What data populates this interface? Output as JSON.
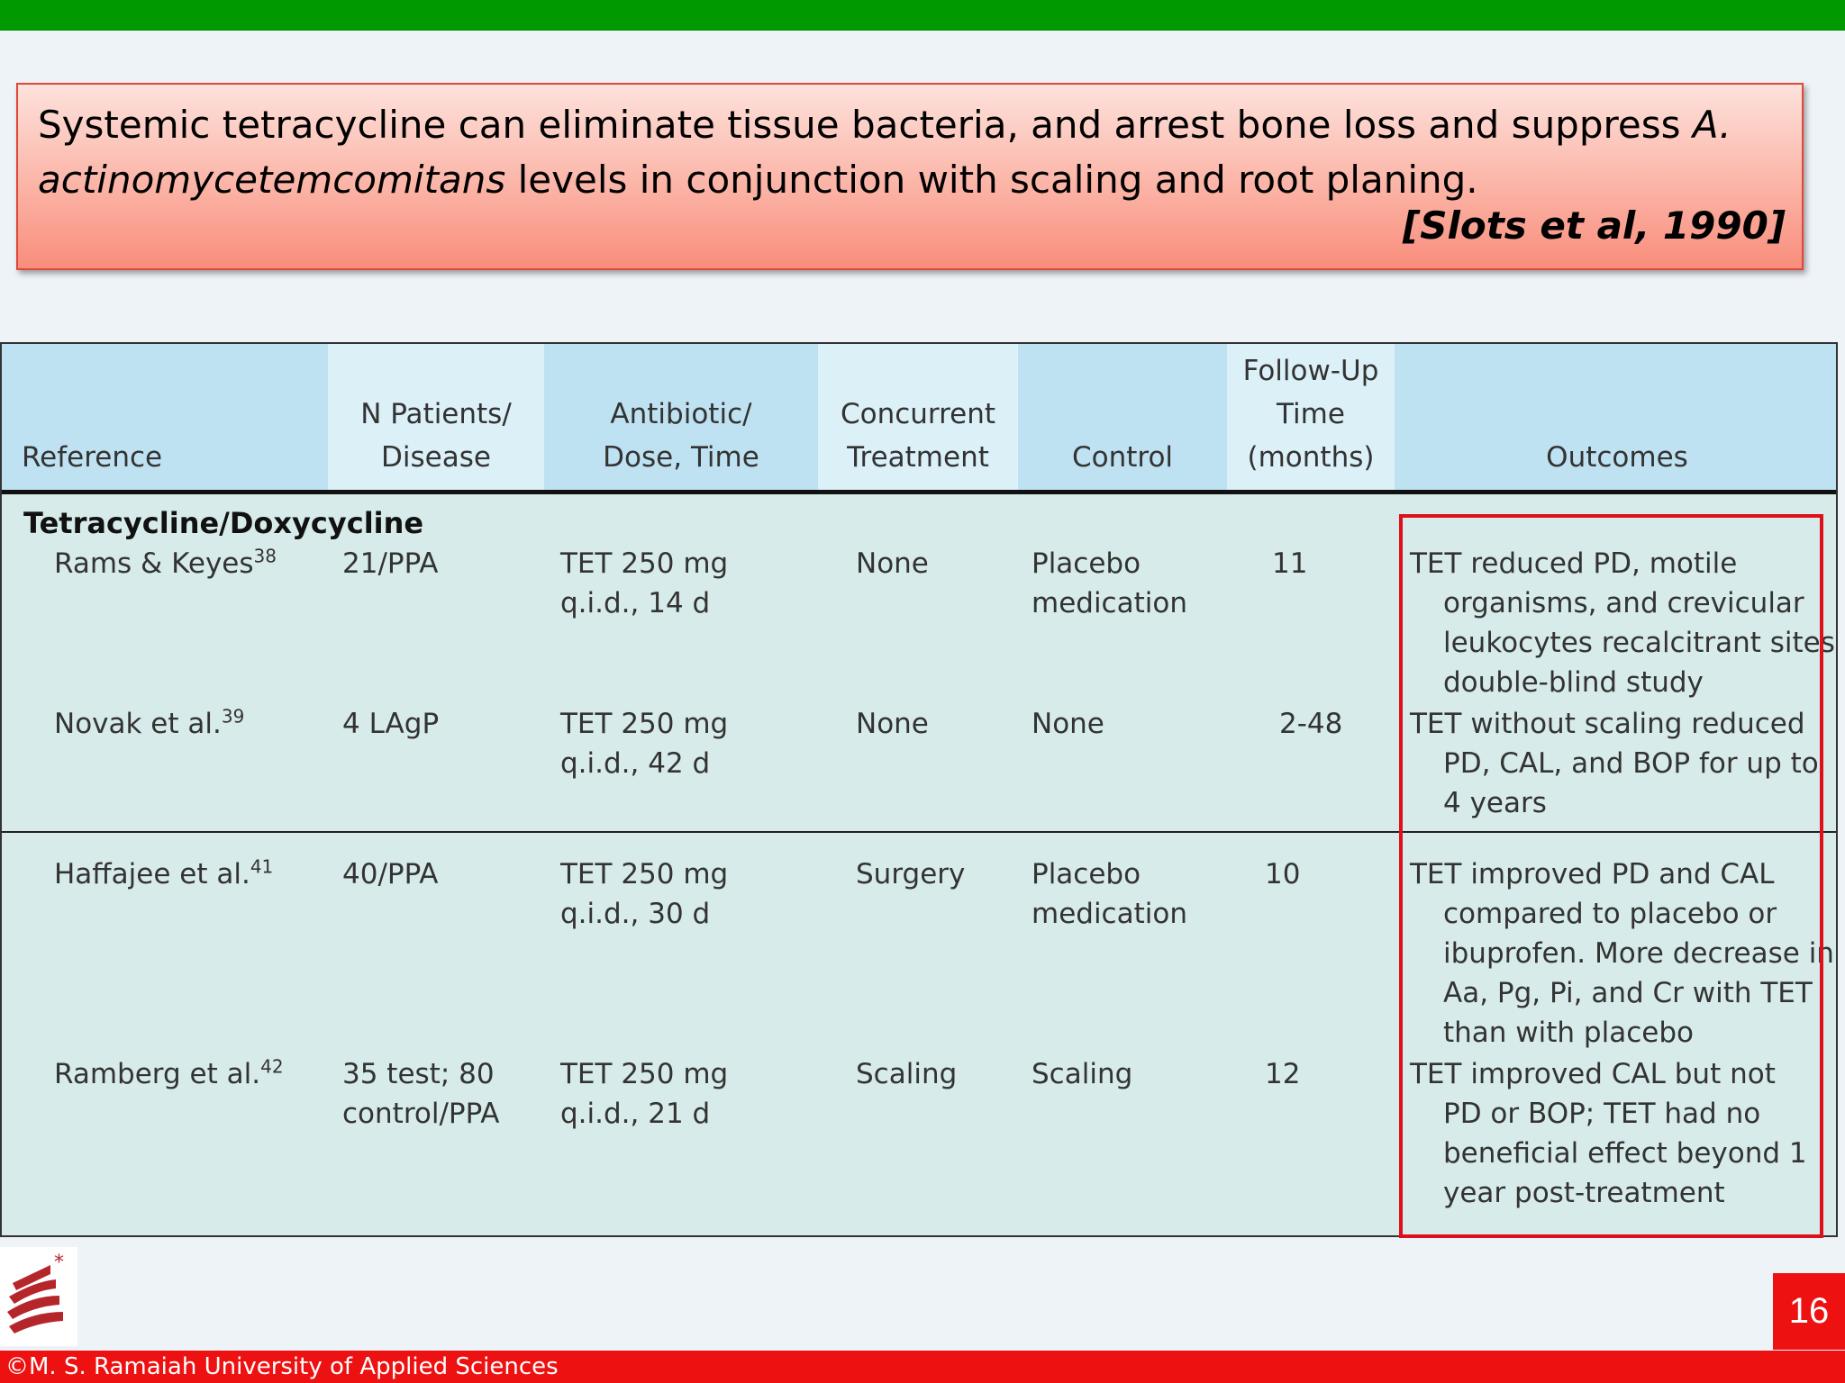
{
  "callout": {
    "text_part1": "Systemic tetracycline can eliminate tissue bacteria, and arrest bone loss and suppress ",
    "text_italic": "A. actinomycetemcomitans",
    "text_part2": " levels in conjunction with scaling and root planing.",
    "citation": "[Slots et al, 1990]"
  },
  "table": {
    "headers": {
      "reference": "Reference",
      "patients": "N Patients/\nDisease",
      "antibiotic": "Antibiotic/\nDose, Time",
      "concurrent": "Concurrent\nTreatment",
      "control": "Control",
      "followup": "Follow-Up\nTime\n(months)",
      "outcomes": "Outcomes"
    },
    "group_title": "Tetracycline/Doxycycline",
    "rows": [
      {
        "reference": "Rams & Keyes",
        "ref_num": "38",
        "patients": "21/PPA",
        "antibiotic": "TET 250 mg\nq.i.d., 14 d",
        "concurrent": "None",
        "control": "Placebo\nmedication",
        "followup": "11",
        "outcome_lines": [
          "TET reduced PD, motile",
          "organisms, and crevicular",
          "leukocytes recalcitrant sites;",
          "double-blind study"
        ]
      },
      {
        "reference": "Novak et al.",
        "ref_num": "39",
        "patients": "4 LAgP",
        "antibiotic": "TET 250 mg\nq.i.d., 42 d",
        "concurrent": "None",
        "control": "None",
        "followup": "2-48",
        "outcome_lines": [
          "TET without scaling reduced",
          "PD, CAL, and BOP for up to",
          "4 years"
        ]
      },
      {
        "reference": "Haffajee et al.",
        "ref_num": "41",
        "patients": "40/PPA",
        "antibiotic": "TET 250 mg\nq.i.d., 30 d",
        "concurrent": "Surgery",
        "control": "Placebo\nmedication",
        "followup": "10",
        "outcome_lines": [
          "TET improved PD and CAL",
          "compared to placebo or",
          "ibuprofen. More decrease in",
          "Aa, Pg, Pi, and Cr with TET",
          "than with placebo"
        ]
      },
      {
        "reference": "Ramberg et al.",
        "ref_num": "42",
        "patients": "35 test; 80\ncontrol/PPA",
        "antibiotic": "TET 250 mg\nq.i.d., 21 d",
        "concurrent": "Scaling",
        "control": "Scaling",
        "followup": "12",
        "outcome_lines": [
          "TET improved CAL but not",
          "PD or BOP; TET had no",
          "beneficial effect beyond 1",
          "year post-treatment"
        ]
      }
    ]
  },
  "page_number": "16",
  "footer": "©M. S. Ramaiah University of Applied Sciences",
  "colors": {
    "top_bar": "#009a00",
    "footer": "#ee1111",
    "highlight": "#e0101a"
  }
}
